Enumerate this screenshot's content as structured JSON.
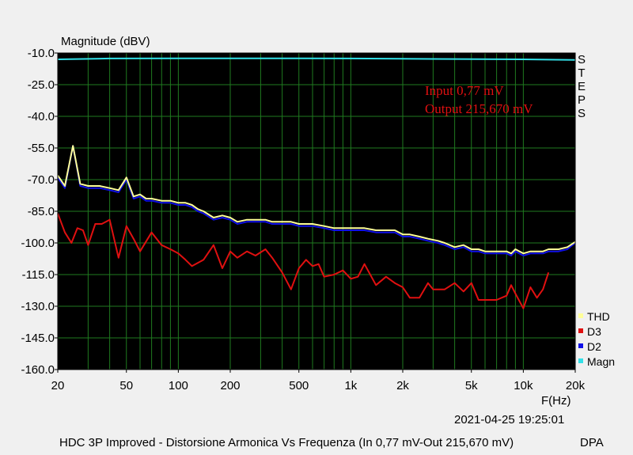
{
  "chart_data": {
    "type": "line",
    "ylabel": "Magnitude (dBV)",
    "xlabel": "F(Hz)",
    "x_scale": "log",
    "xlim": [
      20,
      20000
    ],
    "ylim": [
      -160,
      -10
    ],
    "y_ticks": [
      -10,
      -25,
      -40,
      -55,
      -70,
      -85,
      -100,
      -115,
      -130,
      -145,
      -160
    ],
    "y_tick_labels": [
      "-10.0",
      "-25.0",
      "-40.0",
      "-55.0",
      "-70.0",
      "-85.0",
      "-100.0",
      "-115.0",
      "-130.0",
      "-145.0",
      "-160.0"
    ],
    "x_ticks": [
      20,
      50,
      100,
      200,
      500,
      1000,
      2000,
      5000,
      10000,
      20000
    ],
    "x_tick_labels": [
      "20",
      "50",
      "100",
      "200",
      "500",
      "1k",
      "2k",
      "5k",
      "10k",
      "20k"
    ],
    "grid": true,
    "background": "#000000",
    "grid_color": "#1f7a1f",
    "legend_position": "bottom-right",
    "annotations": [
      "Input 0,77 mV",
      "Output 215,670 mV"
    ],
    "annotation_color": "#e01010",
    "side_label": [
      "S",
      "T",
      "E",
      "P",
      "S"
    ],
    "series": [
      {
        "name": "Magn",
        "color": "#33e0e8",
        "x": [
          20,
          40,
          100,
          300,
          1000,
          3000,
          10000,
          20000
        ],
        "y": [
          -13.0,
          -12.6,
          -12.5,
          -12.5,
          -12.6,
          -12.8,
          -13.0,
          -13.3
        ]
      },
      {
        "name": "D2",
        "color": "#1010e8",
        "x": [
          20,
          22,
          24.5,
          27,
          30,
          35,
          40,
          45,
          50,
          55,
          60,
          65,
          70,
          80,
          90,
          100,
          110,
          120,
          130,
          140,
          160,
          180,
          200,
          220,
          250,
          280,
          320,
          350,
          400,
          450,
          500,
          550,
          600,
          700,
          800,
          900,
          1000,
          1100,
          1200,
          1400,
          1600,
          1800,
          2000,
          2200,
          2500,
          2800,
          3200,
          3500,
          4000,
          4500,
          5000,
          5500,
          6000,
          7000,
          8000,
          8500,
          9000,
          10000,
          11000,
          12000,
          13000,
          14000,
          16000,
          18000,
          20000
        ],
        "y": [
          -69,
          -74,
          -54,
          -73,
          -74,
          -74,
          -75,
          -76,
          -70,
          -79,
          -78,
          -80,
          -80,
          -81,
          -81,
          -82,
          -82,
          -83,
          -85,
          -86,
          -89,
          -88,
          -89,
          -91,
          -90,
          -90,
          -90,
          -91,
          -91,
          -91,
          -92,
          -92,
          -92,
          -93,
          -94,
          -94,
          -94,
          -94,
          -94,
          -95,
          -95,
          -95,
          -97,
          -97,
          -98,
          -99,
          -100,
          -101,
          -103,
          -102,
          -104,
          -104,
          -105,
          -105,
          -105,
          -106,
          -104,
          -106,
          -105,
          -105,
          -105,
          -104,
          -104,
          -103,
          -100
        ]
      },
      {
        "name": "THD",
        "color": "#ffff99",
        "x": [
          20,
          22,
          24.5,
          27,
          30,
          35,
          40,
          45,
          50,
          55,
          60,
          65,
          70,
          80,
          90,
          100,
          110,
          120,
          130,
          140,
          160,
          180,
          200,
          220,
          250,
          280,
          320,
          350,
          400,
          450,
          500,
          550,
          600,
          700,
          800,
          900,
          1000,
          1100,
          1200,
          1400,
          1600,
          1800,
          2000,
          2200,
          2500,
          2800,
          3200,
          3500,
          4000,
          4500,
          5000,
          5500,
          6000,
          7000,
          8000,
          8500,
          9000,
          10000,
          11000,
          12000,
          13000,
          14000,
          16000,
          18000,
          20000
        ],
        "y": [
          -68,
          -73,
          -54,
          -72,
          -73,
          -73,
          -74,
          -75,
          -69,
          -78,
          -77,
          -79,
          -79,
          -80,
          -80,
          -81,
          -81,
          -82,
          -84,
          -85,
          -88,
          -87,
          -88,
          -90,
          -89,
          -89,
          -89,
          -90,
          -90,
          -90,
          -91,
          -91,
          -91,
          -92,
          -93,
          -93,
          -93,
          -93,
          -93,
          -94,
          -94,
          -94,
          -96,
          -96,
          -97,
          -98,
          -99,
          -100,
          -102,
          -101,
          -103,
          -103,
          -104,
          -104,
          -104,
          -105,
          -103,
          -105,
          -104,
          -104,
          -104,
          -103,
          -103,
          -102,
          -99.5
        ]
      },
      {
        "name": "D3",
        "color": "#e01010",
        "x": [
          20,
          22,
          24,
          26,
          28,
          30,
          33,
          36,
          40,
          45,
          50,
          55,
          60,
          70,
          80,
          90,
          100,
          110,
          120,
          140,
          160,
          180,
          200,
          220,
          250,
          280,
          320,
          350,
          400,
          450,
          500,
          550,
          600,
          650,
          700,
          800,
          900,
          1000,
          1100,
          1200,
          1400,
          1600,
          1800,
          2000,
          2200,
          2500,
          2800,
          3000,
          3500,
          4000,
          4500,
          5000,
          5500,
          6000,
          7000,
          8000,
          8500,
          9000,
          10000,
          11000,
          12000,
          13000,
          14000
        ],
        "y": [
          -86,
          -95,
          -100,
          -93,
          -94,
          -101,
          -91,
          -91,
          -89,
          -107,
          -92,
          -98,
          -104,
          -95,
          -101,
          -103,
          -105,
          -108,
          -111,
          -108,
          -101,
          -112,
          -104,
          -107,
          -104,
          -106,
          -103,
          -107,
          -114,
          -122,
          -112,
          -108,
          -111,
          -110,
          -116,
          -115,
          -113,
          -117,
          -116,
          -110,
          -120,
          -116,
          -119,
          -121,
          -126,
          -126,
          -119,
          -122,
          -122,
          -119,
          -123,
          -119,
          -127,
          -127,
          -127,
          -125,
          -120,
          -124,
          -131,
          -121,
          -126,
          -122,
          -114
        ]
      }
    ]
  },
  "footer": {
    "timestamp": "2021-04-25 19:25:01",
    "caption": "HDC 3P Improved - Distorsione Armonica Vs Frequenza (In 0,77 mV-Out 215,670 mV)",
    "brand": "DPA"
  }
}
